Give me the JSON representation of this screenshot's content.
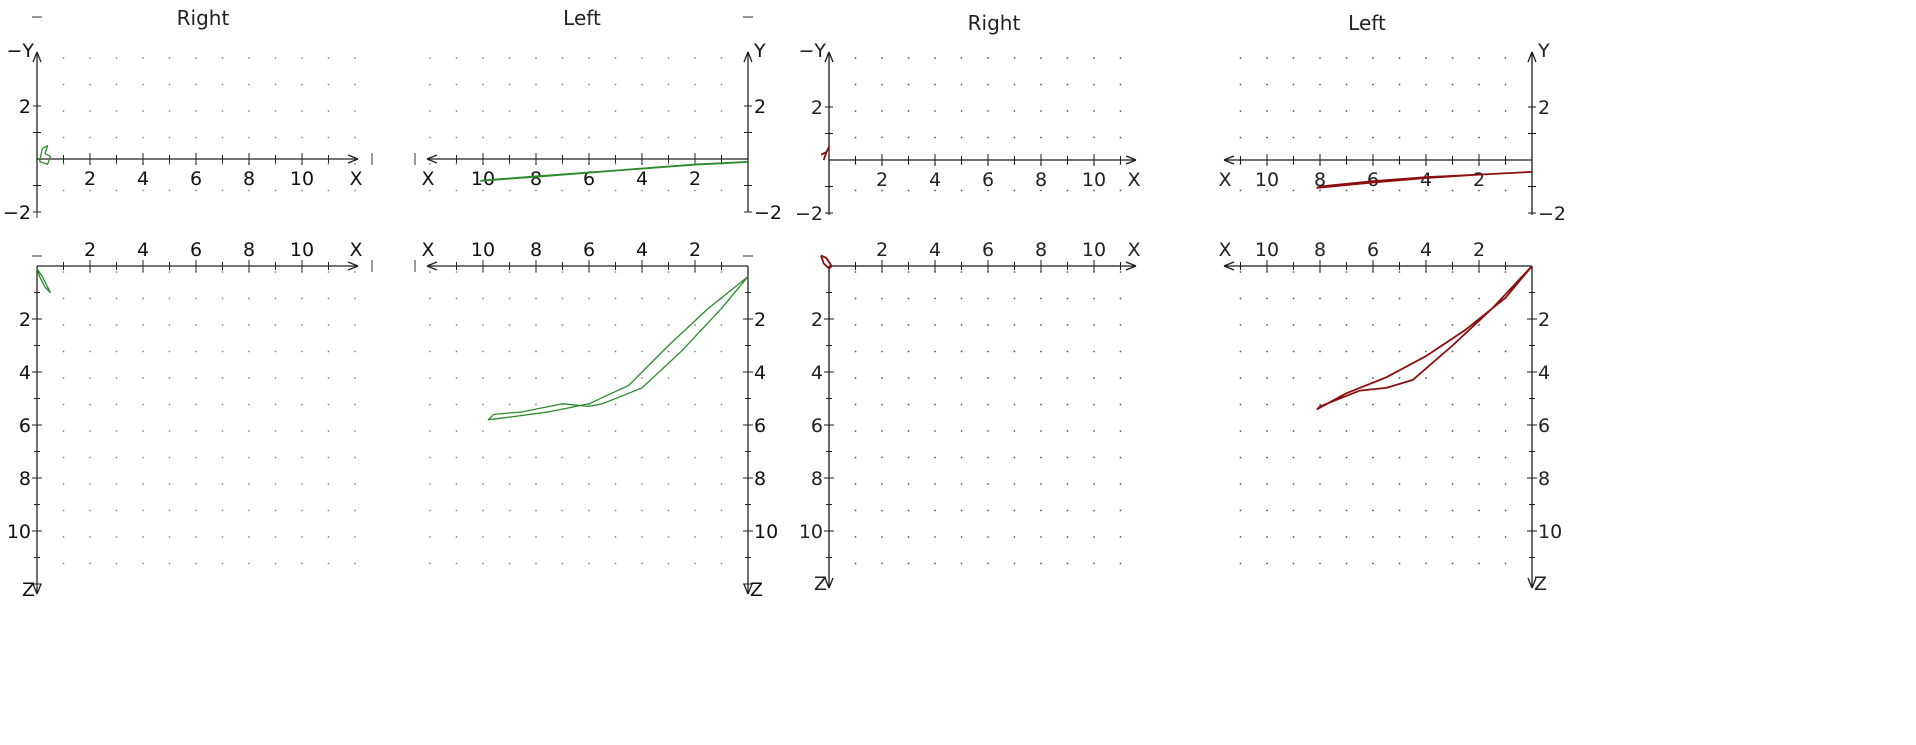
{
  "chart_data": [
    {
      "type": "line",
      "section": "green-tracing",
      "panels": [
        {
          "id": "g-right-xy",
          "title": "Right",
          "view": "XY",
          "side": "right",
          "x_axis_label": "X",
          "y_axis_label_top": "−Y",
          "y_tick_labels": [
            "2",
            "−2"
          ],
          "x_tick_labels": [
            "2",
            "4",
            "6",
            "8",
            "10"
          ],
          "xlim": [
            0,
            12
          ],
          "ylim": [
            -2,
            2
          ],
          "series": [
            {
              "color": "#2b8a2b",
              "x": [
                0.1,
                0.4,
                0.5,
                0.3,
                0.4,
                0.2,
                0.1
              ],
              "y": [
                -0.1,
                -0.2,
                0.1,
                0.2,
                0.5,
                0.4,
                -0.1
              ]
            }
          ]
        },
        {
          "id": "g-left-xy",
          "title": "Left",
          "view": "XY",
          "side": "left",
          "x_axis_label": "X",
          "y_axis_label_top": "Y",
          "y_tick_labels": [
            "2",
            "−2"
          ],
          "x_tick_labels": [
            "10",
            "8",
            "6",
            "4",
            "2"
          ],
          "xlim": [
            0,
            12
          ],
          "ylim": [
            -2,
            2
          ],
          "series": [
            {
              "color": "#2b8a2b",
              "x": [
                0.0,
                2.0,
                4.0,
                6.0,
                8.0,
                10.0,
                10.1,
                8.0,
                6.0,
                4.0,
                2.0,
                0.0
              ],
              "y": [
                -0.1,
                -0.2,
                -0.35,
                -0.5,
                -0.65,
                -0.8,
                -0.83,
                -0.68,
                -0.52,
                -0.37,
                -0.22,
                -0.12
              ]
            }
          ]
        },
        {
          "id": "g-right-xz",
          "title": "",
          "view": "XZ",
          "side": "right",
          "x_axis_label": "X",
          "z_axis_label": "Z",
          "z_tick_labels": [
            "2",
            "4",
            "6",
            "8",
            "10"
          ],
          "x_tick_labels": [
            "2",
            "4",
            "6",
            "8",
            "10"
          ],
          "xlim": [
            0,
            12
          ],
          "zlim": [
            0,
            12
          ],
          "series": [
            {
              "color": "#2b8a2b",
              "x": [
                0.0,
                0.2,
                0.4,
                0.5,
                0.3,
                0.1,
                0.0
              ],
              "z": [
                0.1,
                0.4,
                0.8,
                1.0,
                0.8,
                0.4,
                0.1
              ]
            }
          ]
        },
        {
          "id": "g-left-xz",
          "title": "",
          "view": "XZ",
          "side": "left",
          "x_axis_label": "X",
          "z_axis_label": "Z",
          "z_tick_labels": [
            "2",
            "4",
            "6",
            "8",
            "10"
          ],
          "x_tick_labels": [
            "10",
            "8",
            "6",
            "4",
            "2"
          ],
          "xlim": [
            0,
            12
          ],
          "zlim": [
            0,
            12
          ],
          "series": [
            {
              "color": "#2b8a2b",
              "x": [
                0.0,
                1.5,
                3.0,
                4.5,
                6.0,
                7.5,
                9.0,
                9.8,
                9.6,
                8.5,
                7.0,
                6.0,
                5.5,
                4.0,
                2.5,
                1.0,
                0.0
              ],
              "z": [
                0.4,
                1.6,
                3.0,
                4.5,
                5.2,
                5.5,
                5.7,
                5.8,
                5.6,
                5.5,
                5.2,
                5.3,
                5.2,
                4.6,
                3.2,
                1.6,
                0.4
              ]
            }
          ]
        }
      ]
    },
    {
      "type": "line",
      "section": "red-tracing",
      "panels": [
        {
          "id": "r-right-xy",
          "title": "Right",
          "view": "XY",
          "side": "right",
          "x_axis_label": "X",
          "y_axis_label_top": "−Y",
          "y_tick_labels": [
            "2",
            "−2"
          ],
          "x_tick_labels": [
            "2",
            "4",
            "6",
            "8",
            "10",
            "X"
          ],
          "xlim": [
            0,
            12
          ],
          "ylim": [
            -2,
            2
          ],
          "series": [
            {
              "color": "#8b0e0e",
              "x": [
                -0.2,
                -0.1,
                0.0,
                -0.1,
                -0.3
              ],
              "y": [
                0.0,
                0.3,
                0.5,
                0.3,
                0.2
              ]
            }
          ]
        },
        {
          "id": "r-left-xy",
          "title": "Left",
          "view": "XY",
          "side": "left",
          "x_axis_label": "X",
          "y_axis_label_top": "Y",
          "y_tick_labels": [
            "2",
            "−2"
          ],
          "x_tick_labels": [
            "10",
            "8",
            "6",
            "4",
            "2"
          ],
          "xlim": [
            0,
            12
          ],
          "ylim": [
            -2,
            2
          ],
          "series": [
            {
              "color": "#8b0e0e",
              "x": [
                0.0,
                2.0,
                4.0,
                6.0,
                8.0,
                8.1,
                6.0,
                4.0,
                2.0,
                0.0
              ],
              "y": [
                -0.45,
                -0.55,
                -0.65,
                -0.8,
                -1.0,
                -1.05,
                -0.85,
                -0.68,
                -0.55,
                -0.45
              ]
            }
          ]
        },
        {
          "id": "r-right-xz",
          "title": "",
          "view": "XZ",
          "side": "right",
          "x_axis_label": "X",
          "z_axis_label": "Z",
          "z_tick_labels": [
            "2",
            "4",
            "6",
            "8",
            "10"
          ],
          "x_tick_labels": [
            "2",
            "4",
            "6",
            "8",
            "10"
          ],
          "xlim": [
            0,
            12
          ],
          "zlim": [
            0,
            12
          ],
          "series": [
            {
              "color": "#8b0e0e",
              "x": [
                -0.3,
                -0.2,
                0.0,
                0.1,
                -0.1,
                -0.3
              ],
              "z": [
                -0.4,
                -0.1,
                0.1,
                0.0,
                -0.3,
                -0.4
              ]
            }
          ]
        },
        {
          "id": "r-left-xz",
          "title": "",
          "view": "XZ",
          "side": "left",
          "x_axis_label": "X",
          "z_axis_label": "Z",
          "z_tick_labels": [
            "2",
            "4",
            "6",
            "8",
            "10"
          ],
          "x_tick_labels": [
            "10",
            "8",
            "6",
            "4",
            "2"
          ],
          "xlim": [
            0,
            12
          ],
          "zlim": [
            0,
            12
          ],
          "series": [
            {
              "color": "#8b0e0e",
              "x": [
                0.0,
                1.0,
                2.5,
                4.0,
                5.5,
                7.0,
                8.1,
                8.0,
                6.5,
                5.5,
                4.5,
                3.0,
                1.5,
                0.0
              ],
              "z": [
                0.0,
                1.2,
                2.4,
                3.4,
                4.2,
                4.8,
                5.4,
                5.3,
                4.7,
                4.6,
                4.3,
                3.0,
                1.6,
                0.0
              ]
            }
          ]
        }
      ]
    }
  ]
}
